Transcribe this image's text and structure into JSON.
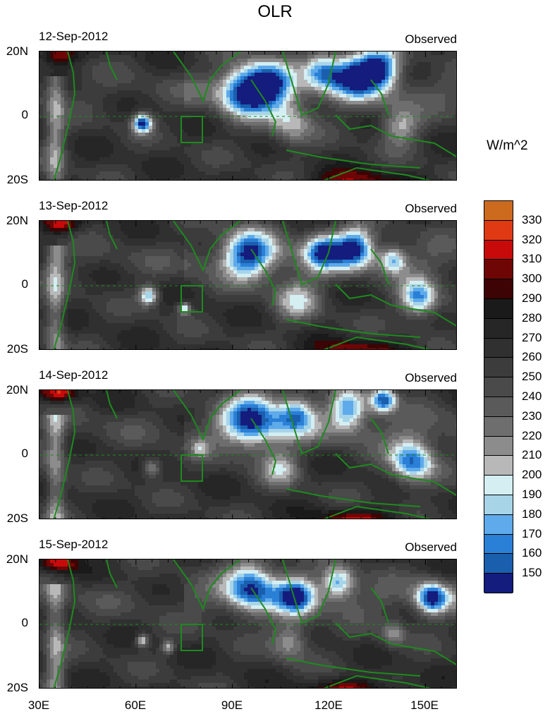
{
  "chart_data": {
    "type": "heatmap",
    "title": "OLR",
    "units": "W/m^2",
    "panels": [
      {
        "date": "12-Sep-2012",
        "label": "Observed"
      },
      {
        "date": "13-Sep-2012",
        "label": "Observed"
      },
      {
        "date": "14-Sep-2012",
        "label": "Observed"
      },
      {
        "date": "15-Sep-2012",
        "label": "Observed"
      }
    ],
    "y_ticks": [
      "20N",
      "0",
      "20S"
    ],
    "x_ticks": [
      "30E",
      "60E",
      "90E",
      "120E",
      "150E"
    ],
    "xlim": [
      30,
      160
    ],
    "ylim": [
      -20,
      20
    ],
    "colorbar": {
      "labels": [
        330,
        320,
        310,
        300,
        290,
        280,
        270,
        260,
        250,
        240,
        230,
        220,
        210,
        200,
        190,
        180,
        170,
        160,
        150
      ],
      "colors": [
        "#cc6a1e",
        "#e03a14",
        "#c80a0a",
        "#6e0606",
        "#3c0404",
        "#1a1a1a",
        "#262626",
        "#303030",
        "#3c3c3c",
        "#4a4a4a",
        "#5a5a5a",
        "#6e6e6e",
        "#8c8c8c",
        "#b8b8b8",
        "#d4eef2",
        "#a8d4e8",
        "#5eaaea",
        "#2a7fd6",
        "#1a5fae",
        "#141c7e"
      ]
    }
  }
}
